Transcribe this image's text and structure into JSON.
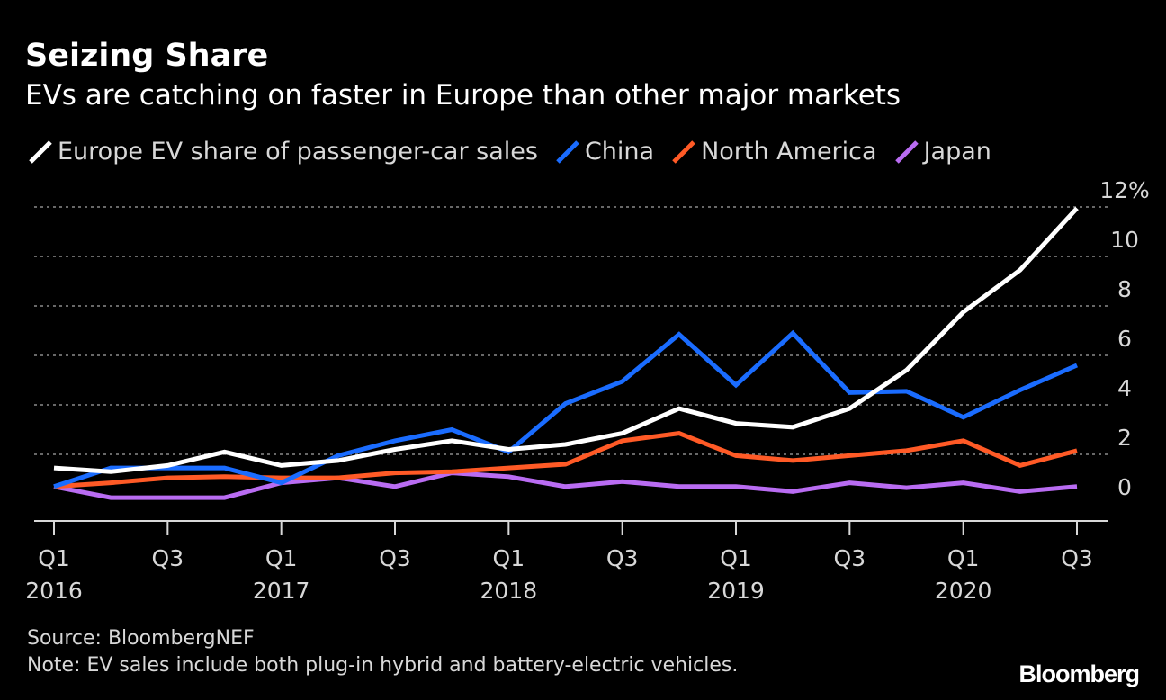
{
  "chart_data": {
    "type": "line",
    "title": "Seizing Share",
    "subtitle": "EVs are catching on faster in Europe than other major markets",
    "x": [
      "Q1 2016",
      "Q2 2016",
      "Q3 2016",
      "Q4 2016",
      "Q1 2017",
      "Q2 2017",
      "Q3 2017",
      "Q4 2017",
      "Q1 2018",
      "Q2 2018",
      "Q3 2018",
      "Q4 2018",
      "Q1 2019",
      "Q2 2019",
      "Q3 2019",
      "Q4 2019",
      "Q1 2020",
      "Q2 2020",
      "Q3 2020"
    ],
    "x_tick_labels": [
      {
        "index": 0,
        "quarter": "Q1",
        "year": "2016"
      },
      {
        "index": 2,
        "quarter": "Q3",
        "year": ""
      },
      {
        "index": 4,
        "quarter": "Q1",
        "year": "2017"
      },
      {
        "index": 6,
        "quarter": "Q3",
        "year": ""
      },
      {
        "index": 8,
        "quarter": "Q1",
        "year": "2018"
      },
      {
        "index": 10,
        "quarter": "Q3",
        "year": ""
      },
      {
        "index": 12,
        "quarter": "Q1",
        "year": "2019"
      },
      {
        "index": 14,
        "quarter": "Q3",
        "year": ""
      },
      {
        "index": 16,
        "quarter": "Q1",
        "year": "2020"
      },
      {
        "index": 18,
        "quarter": "Q3",
        "year": ""
      }
    ],
    "y_ticks": [
      {
        "value": 0,
        "label": "0"
      },
      {
        "value": 2,
        "label": "2"
      },
      {
        "value": 4,
        "label": "4"
      },
      {
        "value": 6,
        "label": "6"
      },
      {
        "value": 8,
        "label": "8"
      },
      {
        "value": 10,
        "label": "10"
      },
      {
        "value": 12,
        "label": "12%"
      }
    ],
    "ylim": [
      0,
      12
    ],
    "grid": true,
    "legend_position": "top",
    "series": [
      {
        "name": "Europe EV share of passenger-car sales",
        "color": "#ffffff",
        "values": [
          1.45,
          1.3,
          1.55,
          2.1,
          1.55,
          1.75,
          2.2,
          2.55,
          2.2,
          2.4,
          2.85,
          3.85,
          3.25,
          3.1,
          3.85,
          5.4,
          7.75,
          9.45,
          11.95
        ]
      },
      {
        "name": "China",
        "color": "#1a6cff",
        "values": [
          0.7,
          1.45,
          1.45,
          1.45,
          0.85,
          1.95,
          2.55,
          3.0,
          2.1,
          4.05,
          4.95,
          6.85,
          4.8,
          6.9,
          4.5,
          4.55,
          3.5,
          4.6,
          5.6
        ]
      },
      {
        "name": "North America",
        "color": "#ff5a26",
        "values": [
          0.7,
          0.85,
          1.05,
          1.1,
          1.05,
          1.05,
          1.25,
          1.3,
          1.45,
          1.6,
          2.55,
          2.85,
          1.95,
          1.75,
          1.95,
          2.15,
          2.55,
          1.55,
          2.15
        ]
      },
      {
        "name": "Japan",
        "color": "#b96cf2",
        "values": [
          0.7,
          0.25,
          0.25,
          0.25,
          0.85,
          1.05,
          0.7,
          1.25,
          1.1,
          0.7,
          0.9,
          0.7,
          0.7,
          0.5,
          0.85,
          0.65,
          0.85,
          0.5,
          0.7
        ]
      }
    ]
  },
  "footer": {
    "source": "Source: BloombergNEF",
    "note": "Note: EV sales include both plug-in hybrid and battery-electric vehicles.",
    "brand": "Bloomberg"
  }
}
